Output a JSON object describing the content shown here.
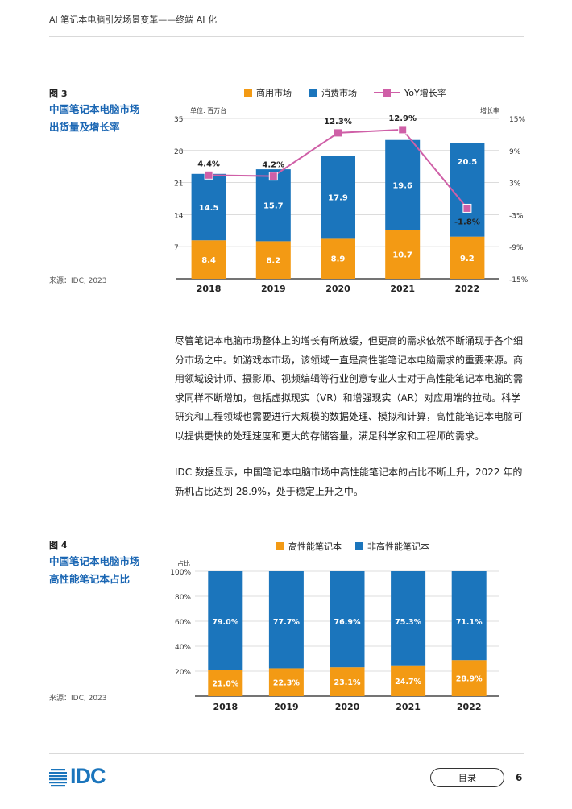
{
  "header": {
    "title": "AI 笔记本电脑引发场景变革——终端 AI 化"
  },
  "fig3": {
    "label": "图 3",
    "title_line1": "中国笔记本电脑市场",
    "title_line2": "出货量及增长率",
    "source": "来源：IDC, 2023"
  },
  "paragraphs": [
    "尽管笔记本电脑市场整体上的增长有所放缓，但更高的需求依然不断涌现于各个细分市场之中。如游戏本市场，该领域一直是高性能笔记本电脑需求的重要来源。商用领域设计师、摄影师、视频编辑等行业创意专业人士对于高性能笔记本电脑的需求同样不断增加，包括虚拟现实（VR）和增强现实（AR）对应用端的拉动。科学研究和工程领域也需要进行大规模的数据处理、模拟和计算，高性能笔记本电脑可以提供更快的处理速度和更大的存储容量，满足科学家和工程师的需求。",
    "IDC 数据显示，中国笔记本电脑市场中高性能笔记本的占比不断上升，2022 年的新机占比达到 28.9%，处于稳定上升之中。"
  ],
  "fig4": {
    "label": "图 4",
    "title_line1": "中国笔记本电脑市场",
    "title_line2": "高性能笔记本占比",
    "source": "来源：IDC, 2023"
  },
  "footer": {
    "logo": "IDC",
    "toc_label": "目录",
    "page_number": "6"
  },
  "colors": {
    "orange": "#f39a14",
    "blue": "#1b75bc",
    "pink": "#cf5fa7",
    "title_blue": "#1a66b3"
  },
  "chart_data": [
    {
      "type": "bar",
      "stacked": true,
      "categories": [
        "2018",
        "2019",
        "2020",
        "2021",
        "2022"
      ],
      "series": [
        {
          "name": "商用市场",
          "values": [
            8.4,
            8.2,
            8.9,
            10.7,
            9.2
          ],
          "labels": [
            "8.4",
            "8.2",
            "8.9",
            "10.7",
            "9.2"
          ],
          "color": "#f39a14"
        },
        {
          "name": "消费市场",
          "values": [
            14.5,
            15.7,
            17.9,
            19.6,
            20.5
          ],
          "labels": [
            "14.5",
            "15.7",
            "17.9",
            "19.6",
            "20.5"
          ],
          "color": "#1b75bc"
        }
      ],
      "line_series": {
        "name": "YoY增长率",
        "values": [
          4.4,
          4.2,
          12.3,
          12.9,
          -1.8
        ],
        "labels": [
          "4.4%",
          "4.2%",
          "12.3%",
          "12.9%",
          "-1.8%"
        ],
        "color": "#cf5fa7"
      },
      "ylabel": "单位: 百万台",
      "y2label": "增长率",
      "ylim": [
        0,
        35
      ],
      "y2lim": [
        -15,
        15
      ],
      "yticks": [
        "35",
        "28",
        "21",
        "14",
        "7"
      ],
      "y2ticks": [
        "15%",
        "9%",
        "3%",
        "-3%",
        "-9%",
        "-15%"
      ],
      "legend_position": "top"
    },
    {
      "type": "bar",
      "stacked": true,
      "categories": [
        "2018",
        "2019",
        "2020",
        "2021",
        "2022"
      ],
      "series": [
        {
          "name": "高性能笔记本",
          "values": [
            21.0,
            22.3,
            23.1,
            24.7,
            28.9
          ],
          "labels": [
            "21.0%",
            "22.3%",
            "23.1%",
            "24.7%",
            "28.9%"
          ],
          "color": "#f39a14"
        },
        {
          "name": "非高性能笔记本",
          "values": [
            79.0,
            77.7,
            76.9,
            75.3,
            71.1
          ],
          "labels": [
            "79.0%",
            "77.7%",
            "76.9%",
            "75.3%",
            "71.1%"
          ],
          "color": "#1b75bc"
        }
      ],
      "ylabel": "占比",
      "ylim": [
        0,
        100
      ],
      "yticks": [
        "100%",
        "80%",
        "60%",
        "40%",
        "20%"
      ],
      "legend_position": "top"
    }
  ]
}
